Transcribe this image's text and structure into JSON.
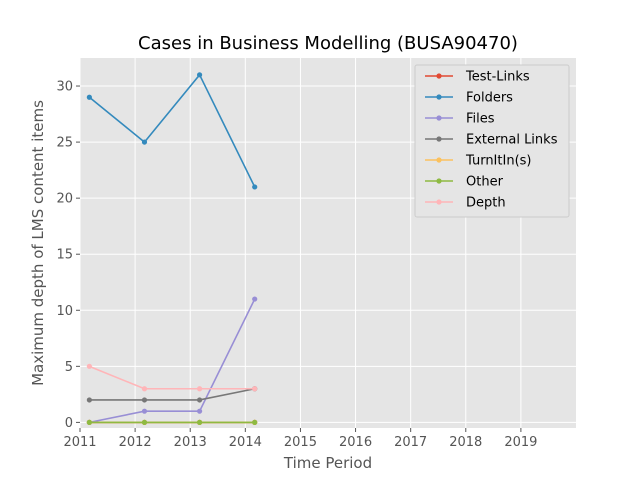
{
  "chart_data": {
    "type": "line",
    "title": "Cases in Business Modelling (BUSA90470)",
    "xlabel": "Time Period",
    "ylabel": "Maximum depth of LMS content items",
    "xlim": [
      2011,
      2020
    ],
    "ylim": [
      -0.5,
      32.5
    ],
    "xticks": [
      2011,
      2012,
      2013,
      2014,
      2015,
      2016,
      2017,
      2018,
      2019
    ],
    "yticks": [
      0,
      5,
      10,
      15,
      20,
      25,
      30
    ],
    "grid": true,
    "legend_position": "top-right",
    "x": [
      2011.17,
      2012.17,
      2013.17,
      2014.17
    ],
    "series": [
      {
        "name": "Test-Links",
        "color": "#E24A33",
        "values": [
          0,
          0,
          0,
          0
        ]
      },
      {
        "name": "Folders",
        "color": "#348ABD",
        "values": [
          29,
          25,
          31,
          21
        ]
      },
      {
        "name": "Files",
        "color": "#988ED5",
        "values": [
          0,
          1,
          1,
          11
        ]
      },
      {
        "name": "External Links",
        "color": "#777777",
        "values": [
          2,
          2,
          2,
          3
        ]
      },
      {
        "name": "TurnItIn(s)",
        "color": "#FBC15E",
        "values": [
          0,
          0,
          0,
          0
        ]
      },
      {
        "name": "Other",
        "color": "#8EBA42",
        "values": [
          0,
          0,
          0,
          0
        ]
      },
      {
        "name": "Depth",
        "color": "#FFB5B8",
        "values": [
          5,
          3,
          3,
          3
        ]
      }
    ]
  }
}
